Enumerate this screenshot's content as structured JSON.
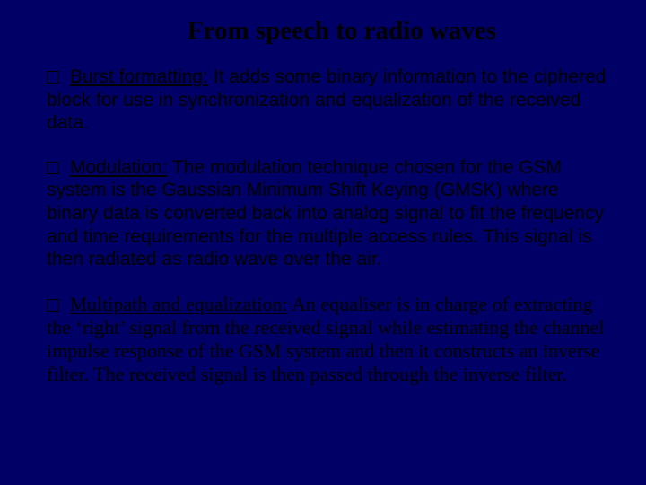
{
  "slide": {
    "title": "From speech to radio waves",
    "background_color": "#000066",
    "title_color": "#000000",
    "text_color": "#000000",
    "title_font": "Times New Roman",
    "body_font_sans": "Arial",
    "body_font_serif": "Times New Roman",
    "title_fontsize": 29,
    "body_fontsize_sans": 21,
    "body_fontsize_serif": 22,
    "bullets": [
      {
        "label": "Burst formatting:",
        "text": " It adds some binary information to the ciphered block for use in synchronization and equalization of the received data.",
        "font": "sans"
      },
      {
        "label": "Modulation:",
        "text": " The modulation technique chosen for the GSM system is the Gaussian Minimum Shift Keying (GMSK) where binary data is converted back into analog signal to fit the frequency and time requirements for the multiple access rules. This signal is then radiated as radio wave over the air.",
        "font": "sans"
      },
      {
        "label": "Multipath and equalization:",
        "text": " An equaliser is in charge of extracting the ‘right’ signal from the received signal while estimating the channel impulse response of the GSM system and then it constructs an inverse filter. The received signal is then passed through the inverse filter.",
        "font": "serif"
      }
    ]
  }
}
